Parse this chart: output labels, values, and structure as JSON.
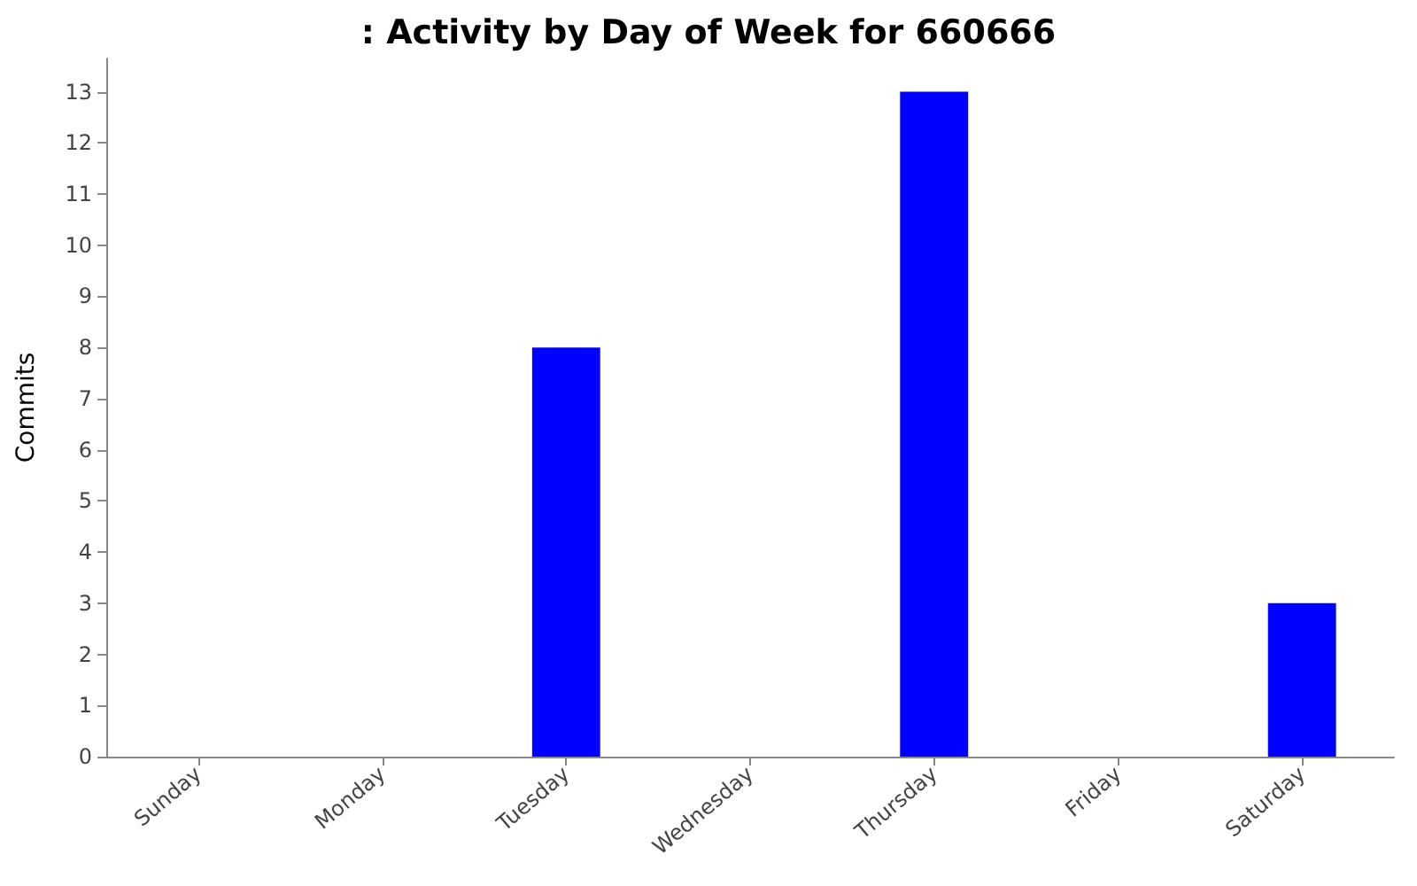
{
  "chart_data": {
    "type": "bar",
    "title": ": Activity by Day of Week for 660666",
    "ylabel": "Commits",
    "categories": [
      "Sunday",
      "Monday",
      "Tuesday",
      "Wednesday",
      "Thursday",
      "Friday",
      "Saturday"
    ],
    "values": [
      0,
      0,
      8,
      0,
      13,
      0,
      3
    ],
    "color": "#0000ff",
    "ylim": [
      0,
      13.65
    ],
    "yticks": [
      0,
      1,
      2,
      3,
      4,
      5,
      6,
      7,
      8,
      9,
      10,
      11,
      12,
      13
    ],
    "grid": false
  }
}
